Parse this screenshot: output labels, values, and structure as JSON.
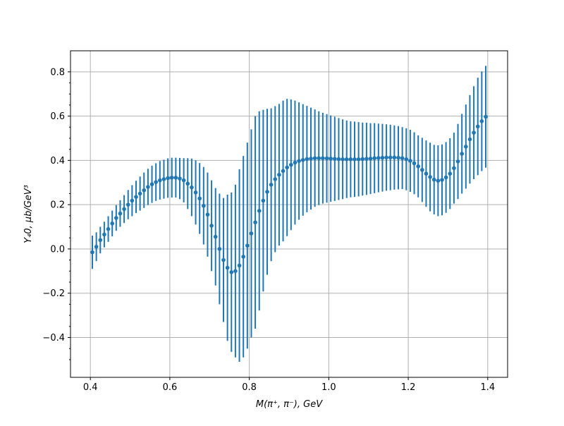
{
  "chart_data": {
    "type": "scatter",
    "title": "",
    "xlabel": "M(π⁺, π⁻), GeV",
    "ylabel": "Y₄0, μb/GeV³",
    "xlim": [
      0.35,
      1.45
    ],
    "ylim": [
      -0.58,
      0.895
    ],
    "xticks": [
      0.4,
      0.6,
      0.8,
      1.0,
      1.2,
      1.4
    ],
    "xtick_labels": [
      "0.4",
      "0.6",
      "0.8",
      "1.0",
      "1.2",
      "1.4"
    ],
    "yticks": [
      -0.4,
      -0.2,
      0.0,
      0.2,
      0.4,
      0.6,
      0.8
    ],
    "ytick_labels": [
      "−0.4",
      "−0.2",
      "0.0",
      "0.2",
      "0.4",
      "0.6",
      "0.8"
    ],
    "grid": true,
    "color": "#1f77b4",
    "series": [
      {
        "x": [
          0.405,
          0.415,
          0.425,
          0.435,
          0.445,
          0.455,
          0.465,
          0.475,
          0.485,
          0.495,
          0.505,
          0.515,
          0.525,
          0.535,
          0.545,
          0.555,
          0.565,
          0.575,
          0.585,
          0.595,
          0.605,
          0.615,
          0.625,
          0.635,
          0.645,
          0.655,
          0.665,
          0.675,
          0.685,
          0.695,
          0.705,
          0.715,
          0.725,
          0.735,
          0.745,
          0.755,
          0.765,
          0.775,
          0.785,
          0.795,
          0.805,
          0.815,
          0.825,
          0.835,
          0.845,
          0.855,
          0.865,
          0.875,
          0.885,
          0.895,
          0.905,
          0.915,
          0.925,
          0.935,
          0.945,
          0.955,
          0.965,
          0.975,
          0.985,
          0.995,
          1.005,
          1.015,
          1.025,
          1.035,
          1.045,
          1.055,
          1.065,
          1.075,
          1.085,
          1.095,
          1.105,
          1.115,
          1.125,
          1.135,
          1.145,
          1.155,
          1.165,
          1.175,
          1.185,
          1.195,
          1.205,
          1.215,
          1.225,
          1.235,
          1.245,
          1.255,
          1.265,
          1.275,
          1.285,
          1.295,
          1.305,
          1.315,
          1.325,
          1.335,
          1.345,
          1.355,
          1.365,
          1.375,
          1.385,
          1.395
        ],
        "y": [
          -0.015,
          0.01,
          0.04,
          0.065,
          0.09,
          0.115,
          0.14,
          0.16,
          0.18,
          0.2,
          0.218,
          0.235,
          0.25,
          0.265,
          0.28,
          0.292,
          0.302,
          0.31,
          0.315,
          0.32,
          0.322,
          0.322,
          0.318,
          0.31,
          0.295,
          0.278,
          0.255,
          0.228,
          0.195,
          0.155,
          0.105,
          0.055,
          0.0,
          -0.05,
          -0.085,
          -0.105,
          -0.1,
          -0.075,
          -0.035,
          0.015,
          0.07,
          0.12,
          0.172,
          0.218,
          0.258,
          0.29,
          0.315,
          0.335,
          0.352,
          0.368,
          0.38,
          0.39,
          0.397,
          0.402,
          0.406,
          0.408,
          0.41,
          0.41,
          0.41,
          0.409,
          0.408,
          0.407,
          0.406,
          0.405,
          0.405,
          0.405,
          0.405,
          0.405,
          0.406,
          0.407,
          0.408,
          0.41,
          0.411,
          0.412,
          0.413,
          0.413,
          0.413,
          0.412,
          0.41,
          0.405,
          0.398,
          0.387,
          0.373,
          0.357,
          0.34,
          0.325,
          0.313,
          0.308,
          0.312,
          0.323,
          0.34,
          0.365,
          0.395,
          0.43,
          0.462,
          0.495,
          0.525,
          0.553,
          0.577,
          0.597
        ],
        "err": [
          0.075,
          0.065,
          0.06,
          0.058,
          0.058,
          0.058,
          0.058,
          0.06,
          0.063,
          0.066,
          0.07,
          0.073,
          0.077,
          0.08,
          0.082,
          0.084,
          0.085,
          0.087,
          0.088,
          0.089,
          0.09,
          0.09,
          0.093,
          0.1,
          0.115,
          0.13,
          0.145,
          0.16,
          0.175,
          0.19,
          0.205,
          0.22,
          0.25,
          0.28,
          0.33,
          0.36,
          0.39,
          0.435,
          0.455,
          0.465,
          0.47,
          0.48,
          0.45,
          0.41,
          0.375,
          0.345,
          0.33,
          0.32,
          0.318,
          0.31,
          0.295,
          0.28,
          0.265,
          0.252,
          0.24,
          0.23,
          0.22,
          0.212,
          0.205,
          0.2,
          0.195,
          0.19,
          0.185,
          0.18,
          0.175,
          0.172,
          0.17,
          0.168,
          0.165,
          0.163,
          0.16,
          0.158,
          0.155,
          0.153,
          0.15,
          0.148,
          0.145,
          0.143,
          0.14,
          0.14,
          0.14,
          0.14,
          0.14,
          0.145,
          0.15,
          0.155,
          0.157,
          0.16,
          0.16,
          0.16,
          0.16,
          0.16,
          0.17,
          0.18,
          0.19,
          0.2,
          0.21,
          0.22,
          0.225,
          0.23
        ]
      }
    ]
  }
}
